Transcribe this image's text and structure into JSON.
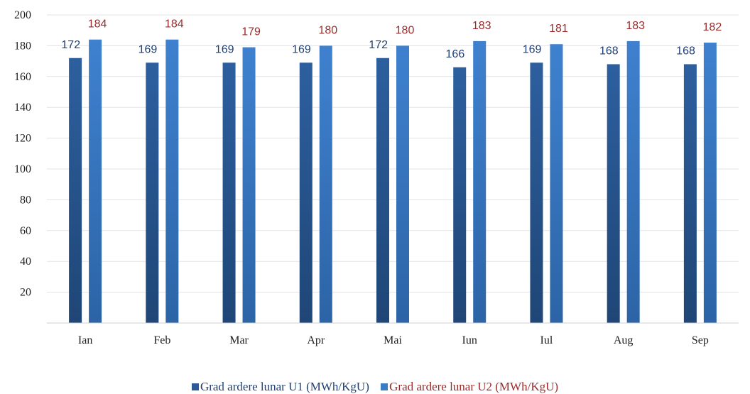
{
  "chart_data": {
    "type": "bar",
    "categories": [
      "Ian",
      "Feb",
      "Mar",
      "Apr",
      "Mai",
      "Iun",
      "Iul",
      "Aug",
      "Sep"
    ],
    "series": [
      {
        "name": "Grad ardere lunar U1 (MWh/KgU)",
        "values": [
          172,
          169,
          169,
          169,
          172,
          166,
          169,
          168,
          168
        ],
        "color": "#2a5a9a",
        "label_color": "#1f3f73"
      },
      {
        "name": "Grad ardere lunar U2 (MWh/KgU)",
        "values": [
          184,
          184,
          179,
          180,
          180,
          183,
          181,
          183,
          182
        ],
        "color": "#3b7cc9",
        "label_color": "#9b2b2b"
      }
    ],
    "ylim": [
      0,
      200
    ],
    "yticks": [
      20,
      40,
      60,
      80,
      100,
      120,
      140,
      160,
      180,
      200
    ],
    "grid": true,
    "legend": "bottom"
  }
}
